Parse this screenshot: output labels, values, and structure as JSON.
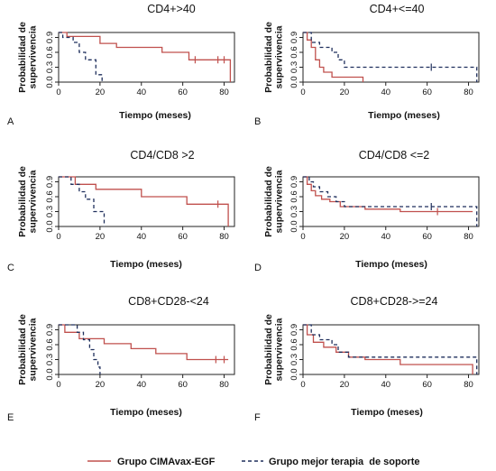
{
  "colors": {
    "cimavax": "#c0504d",
    "best_support": "#1f2f5c",
    "axis": "#222222"
  },
  "legend": {
    "items": [
      {
        "label": "Grupo CIMAvax-EGF",
        "style": "solid",
        "color": "#c0504d"
      },
      {
        "label": "Grupo mejor terapia  de soporte",
        "style": "dashed",
        "color": "#1f2f5c"
      }
    ]
  },
  "chart_data": [
    {
      "panel": "A",
      "type": "line",
      "title": "CD4+>40",
      "xlabel": "Tiempo (meses)",
      "ylabel": "Probabilidad de supervivencia",
      "xlim": [
        0,
        85
      ],
      "ylim": [
        0,
        1
      ],
      "xticks": [
        0,
        20,
        40,
        60,
        80
      ],
      "yticks": [
        0.0,
        0.3,
        0.6,
        0.9
      ],
      "ytick_labels": [
        "0.0",
        "0.3",
        "0.6",
        "0.9"
      ],
      "series": [
        {
          "name": "Grupo CIMAvax-EGF",
          "steps": [
            [
              0,
              1.0
            ],
            [
              4,
              0.92
            ],
            [
              20,
              0.78
            ],
            [
              28,
              0.7
            ],
            [
              50,
              0.6
            ],
            [
              63,
              0.45
            ],
            [
              83,
              0.45
            ],
            [
              83,
              0.0
            ]
          ],
          "censor": [
            [
              66,
              0.45
            ],
            [
              77,
              0.45
            ],
            [
              80,
              0.45
            ]
          ]
        },
        {
          "name": "Grupo mejor terapia  de soporte",
          "steps": [
            [
              0,
              1.0
            ],
            [
              2,
              0.9
            ],
            [
              7,
              0.8
            ],
            [
              10,
              0.6
            ],
            [
              13,
              0.45
            ],
            [
              18,
              0.15
            ],
            [
              21,
              0.15
            ],
            [
              21,
              0.0
            ]
          ],
          "censor": []
        }
      ]
    },
    {
      "panel": "B",
      "type": "line",
      "title": "CD4+<=40",
      "xlabel": "Tiempo (meses)",
      "ylabel": "Probabilidad de supervivencia",
      "xlim": [
        0,
        85
      ],
      "ylim": [
        0,
        1
      ],
      "xticks": [
        0,
        20,
        40,
        60,
        80
      ],
      "yticks": [
        0.0,
        0.3,
        0.6,
        0.9
      ],
      "ytick_labels": [
        "0.0",
        "0.3",
        "0.6",
        "0.9"
      ],
      "series": [
        {
          "name": "Grupo CIMAvax-EGF",
          "steps": [
            [
              0,
              1.0
            ],
            [
              2,
              0.85
            ],
            [
              4,
              0.7
            ],
            [
              6,
              0.45
            ],
            [
              8,
              0.3
            ],
            [
              10,
              0.2
            ],
            [
              14,
              0.1
            ],
            [
              29,
              0.1
            ],
            [
              29,
              0.0
            ]
          ],
          "censor": []
        },
        {
          "name": "Grupo mejor terapia  de soporte",
          "steps": [
            [
              0,
              1.0
            ],
            [
              4,
              0.8
            ],
            [
              8,
              0.7
            ],
            [
              14,
              0.6
            ],
            [
              17,
              0.45
            ],
            [
              20,
              0.3
            ],
            [
              84,
              0.3
            ],
            [
              84,
              0.0
            ]
          ],
          "censor": [
            [
              62,
              0.3
            ]
          ]
        }
      ]
    },
    {
      "panel": "C",
      "type": "line",
      "title": "CD4/CD8 >2",
      "xlabel": "Tiempo (meses)",
      "ylabel": "Probabilidad de supervivencia",
      "xlim": [
        0,
        85
      ],
      "ylim": [
        0,
        1
      ],
      "xticks": [
        0,
        20,
        40,
        60,
        80
      ],
      "yticks": [
        0.0,
        0.3,
        0.6,
        0.9
      ],
      "ytick_labels": [
        "0.0",
        "0.3",
        "0.6",
        "0.9"
      ],
      "series": [
        {
          "name": "Grupo CIMAvax-EGF",
          "steps": [
            [
              0,
              1.0
            ],
            [
              8,
              0.85
            ],
            [
              18,
              0.75
            ],
            [
              40,
              0.6
            ],
            [
              62,
              0.45
            ],
            [
              82,
              0.45
            ],
            [
              82,
              0.0
            ]
          ],
          "censor": [
            [
              77,
              0.45
            ]
          ]
        },
        {
          "name": "Grupo mejor terapia  de soporte",
          "steps": [
            [
              0,
              1.0
            ],
            [
              6,
              0.85
            ],
            [
              10,
              0.7
            ],
            [
              13,
              0.55
            ],
            [
              17,
              0.3
            ],
            [
              20,
              0.3
            ],
            [
              22,
              0.0
            ]
          ],
          "censor": []
        }
      ]
    },
    {
      "panel": "D",
      "type": "line",
      "title": "CD4/CD8 <=2",
      "xlabel": "Tiempo (meses)",
      "ylabel": "Probabilidad de supervivencia",
      "xlim": [
        0,
        85
      ],
      "ylim": [
        0,
        1
      ],
      "xticks": [
        0,
        20,
        40,
        60,
        80
      ],
      "yticks": [
        0.0,
        0.3,
        0.6,
        0.9
      ],
      "ytick_labels": [
        "0.0",
        "0.3",
        "0.6",
        "0.9"
      ],
      "series": [
        {
          "name": "Grupo CIMAvax-EGF",
          "steps": [
            [
              0,
              1.0
            ],
            [
              2,
              0.85
            ],
            [
              4,
              0.72
            ],
            [
              6,
              0.62
            ],
            [
              9,
              0.55
            ],
            [
              13,
              0.5
            ],
            [
              18,
              0.4
            ],
            [
              30,
              0.35
            ],
            [
              47,
              0.3
            ],
            [
              82,
              0.3
            ]
          ],
          "censor": [
            [
              65,
              0.3
            ]
          ]
        },
        {
          "name": "Grupo mejor terapia  de soporte",
          "steps": [
            [
              0,
              1.0
            ],
            [
              3,
              0.9
            ],
            [
              5,
              0.8
            ],
            [
              8,
              0.7
            ],
            [
              12,
              0.6
            ],
            [
              16,
              0.5
            ],
            [
              20,
              0.4
            ],
            [
              84,
              0.4
            ],
            [
              84,
              0.0
            ]
          ],
          "censor": [
            [
              62,
              0.4
            ]
          ]
        }
      ]
    },
    {
      "panel": "E",
      "type": "line",
      "title": "CD8+CD28-<24",
      "xlabel": "Tiempo (meses)",
      "ylabel": "Probabilidad de supervivencia",
      "xlim": [
        0,
        85
      ],
      "ylim": [
        0,
        1
      ],
      "xticks": [
        0,
        20,
        40,
        60,
        80
      ],
      "yticks": [
        0.0,
        0.3,
        0.6,
        0.9
      ],
      "ytick_labels": [
        "0.0",
        "0.3",
        "0.6",
        "0.9"
      ],
      "series": [
        {
          "name": "Grupo CIMAvax-EGF",
          "steps": [
            [
              0,
              1.0
            ],
            [
              3,
              0.85
            ],
            [
              10,
              0.72
            ],
            [
              22,
              0.62
            ],
            [
              35,
              0.52
            ],
            [
              47,
              0.42
            ],
            [
              62,
              0.3
            ],
            [
              82,
              0.3
            ]
          ],
          "censor": [
            [
              76,
              0.3
            ],
            [
              80,
              0.3
            ]
          ]
        },
        {
          "name": "Grupo mejor terapia  de soporte",
          "steps": [
            [
              0,
              1.0
            ],
            [
              9,
              0.85
            ],
            [
              12,
              0.7
            ],
            [
              15,
              0.5
            ],
            [
              17,
              0.3
            ],
            [
              19,
              0.15
            ],
            [
              20,
              0.0
            ]
          ],
          "censor": []
        }
      ]
    },
    {
      "panel": "F",
      "type": "line",
      "title": "CD8+CD28->=24",
      "xlabel": "Tiempo (meses)",
      "ylabel": "Probabilidad de supervivencia",
      "xlim": [
        0,
        85
      ],
      "ylim": [
        0,
        1
      ],
      "xticks": [
        0,
        20,
        40,
        60,
        80
      ],
      "yticks": [
        0.0,
        0.3,
        0.6,
        0.9
      ],
      "ytick_labels": [
        "0.0",
        "0.3",
        "0.6",
        "0.9"
      ],
      "series": [
        {
          "name": "Grupo CIMAvax-EGF",
          "steps": [
            [
              0,
              1.0
            ],
            [
              2,
              0.8
            ],
            [
              5,
              0.65
            ],
            [
              10,
              0.55
            ],
            [
              16,
              0.45
            ],
            [
              22,
              0.35
            ],
            [
              30,
              0.3
            ],
            [
              47,
              0.2
            ],
            [
              82,
              0.2
            ],
            [
              82,
              0.0
            ]
          ],
          "censor": []
        },
        {
          "name": "Grupo mejor terapia  de soporte",
          "steps": [
            [
              0,
              1.0
            ],
            [
              4,
              0.8
            ],
            [
              8,
              0.7
            ],
            [
              14,
              0.6
            ],
            [
              17,
              0.45
            ],
            [
              22,
              0.35
            ],
            [
              84,
              0.35
            ],
            [
              84,
              0.0
            ]
          ],
          "censor": []
        }
      ]
    }
  ]
}
